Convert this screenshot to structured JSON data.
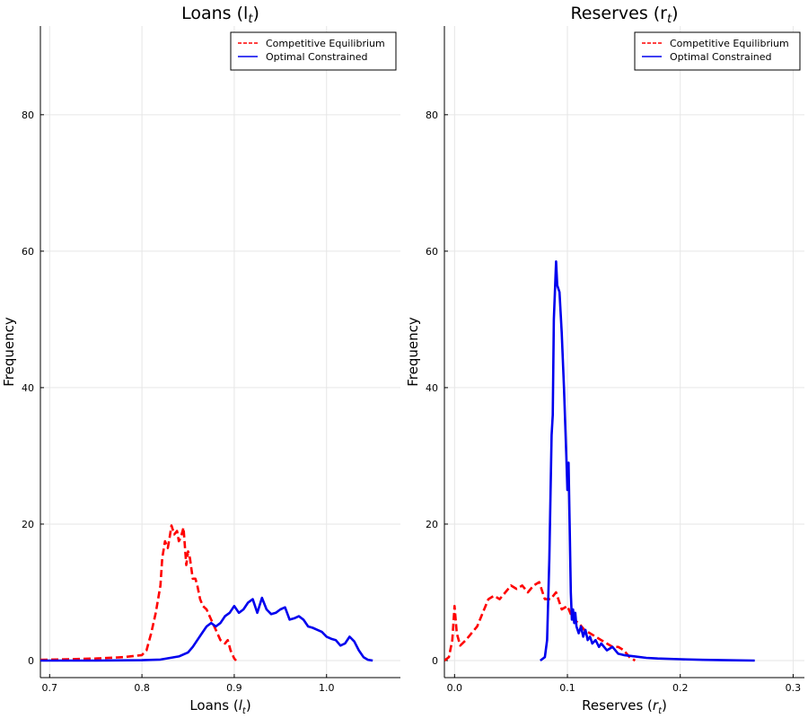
{
  "chart_data": [
    {
      "type": "line",
      "title": "Loans (l",
      "title_sub": "t",
      "title_close": ")",
      "xlabel": "Loans (",
      "xlabel_var": "l",
      "xlabel_sub": "t",
      "xlabel_close": ")",
      "ylabel": "Frequency",
      "xlim": [
        0.69,
        1.08
      ],
      "ylim": [
        -2.5,
        93
      ],
      "xticks": [
        0.7,
        0.8,
        0.9,
        1.0
      ],
      "xtick_labels": [
        "0.7",
        "0.8",
        "0.9",
        "1.0"
      ],
      "yticks": [
        0,
        20,
        40,
        60,
        80
      ],
      "ytick_labels": [
        "0",
        "20",
        "40",
        "60",
        "80"
      ],
      "grid": true,
      "legend_position": "top-right",
      "series": [
        {
          "name": "Competitive Equilibrium",
          "color": "#ff0000",
          "dash": true,
          "x": [
            0.69,
            0.72,
            0.75,
            0.78,
            0.8,
            0.805,
            0.81,
            0.815,
            0.82,
            0.822,
            0.825,
            0.828,
            0.83,
            0.832,
            0.835,
            0.838,
            0.84,
            0.842,
            0.845,
            0.848,
            0.85,
            0.852,
            0.855,
            0.858,
            0.86,
            0.863,
            0.866,
            0.87,
            0.875,
            0.88,
            0.885,
            0.89,
            0.893,
            0.896,
            0.9,
            0.902
          ],
          "y": [
            0.1,
            0.2,
            0.3,
            0.5,
            0.8,
            1.5,
            4,
            7,
            11,
            15,
            17.5,
            16.5,
            18,
            19.8,
            18.5,
            19,
            17.5,
            18,
            19.5,
            14,
            16,
            15,
            12,
            12,
            11,
            9,
            8,
            7.5,
            6,
            4.5,
            3,
            2.5,
            3,
            1.5,
            0.3,
            0
          ]
        },
        {
          "name": "Optimal Constrained",
          "color": "#0000ee",
          "dash": false,
          "x": [
            0.69,
            0.75,
            0.8,
            0.82,
            0.84,
            0.85,
            0.855,
            0.86,
            0.865,
            0.87,
            0.875,
            0.88,
            0.885,
            0.89,
            0.895,
            0.9,
            0.905,
            0.91,
            0.915,
            0.92,
            0.925,
            0.93,
            0.935,
            0.94,
            0.945,
            0.95,
            0.955,
            0.96,
            0.965,
            0.97,
            0.975,
            0.98,
            0.985,
            0.99,
            0.995,
            1.0,
            1.005,
            1.01,
            1.015,
            1.02,
            1.025,
            1.03,
            1.035,
            1.04,
            1.045,
            1.05
          ],
          "y": [
            0,
            0,
            0.05,
            0.15,
            0.6,
            1.2,
            2,
            3,
            4,
            5,
            5.5,
            5,
            5.5,
            6.5,
            7,
            8,
            7,
            7.5,
            8.5,
            9,
            7,
            9.2,
            7.5,
            6.8,
            7,
            7.5,
            7.8,
            6,
            6.2,
            6.5,
            6,
            5,
            4.8,
            4.5,
            4.2,
            3.5,
            3.2,
            3,
            2.2,
            2.5,
            3.5,
            2.8,
            1.5,
            0.5,
            0.1,
            0
          ]
        }
      ]
    },
    {
      "type": "line",
      "title": "Reserves (r",
      "title_sub": "t",
      "title_close": ")",
      "xlabel": "Reserves (",
      "xlabel_var": "r",
      "xlabel_sub": "t",
      "xlabel_close": ")",
      "ylabel": "Frequency",
      "xlim": [
        -0.009,
        0.31
      ],
      "ylim": [
        -2.5,
        93
      ],
      "xticks": [
        0.0,
        0.1,
        0.2,
        0.3
      ],
      "xtick_labels": [
        "0.0",
        "0.1",
        "0.2",
        "0.3"
      ],
      "yticks": [
        0,
        20,
        40,
        60,
        80
      ],
      "ytick_labels": [
        "0",
        "20",
        "40",
        "60",
        "80"
      ],
      "grid": true,
      "legend_position": "top-right",
      "series": [
        {
          "name": "Competitive Equilibrium",
          "color": "#ff0000",
          "dash": true,
          "x": [
            -0.009,
            -0.005,
            -0.002,
            0.0,
            0.002,
            0.005,
            0.01,
            0.015,
            0.02,
            0.025,
            0.03,
            0.035,
            0.04,
            0.045,
            0.05,
            0.055,
            0.06,
            0.065,
            0.07,
            0.075,
            0.08,
            0.085,
            0.09,
            0.095,
            0.1,
            0.105,
            0.11,
            0.115,
            0.12,
            0.125,
            0.13,
            0.135,
            0.14,
            0.145,
            0.15,
            0.155,
            0.16
          ],
          "y": [
            0,
            0.5,
            3,
            8,
            4,
            2.2,
            3,
            4,
            5,
            7,
            9,
            9.5,
            9,
            10,
            11,
            10.5,
            11,
            10,
            11,
            11.5,
            9,
            9,
            10,
            7.5,
            8,
            6,
            5.5,
            4.5,
            4,
            3.5,
            3,
            2.5,
            2,
            2,
            1.5,
            0.5,
            0
          ]
        },
        {
          "name": "Optimal Constrained",
          "color": "#0000ee",
          "dash": false,
          "x": [
            0.076,
            0.08,
            0.082,
            0.084,
            0.086,
            0.087,
            0.088,
            0.09,
            0.091,
            0.093,
            0.095,
            0.097,
            0.099,
            0.1,
            0.101,
            0.102,
            0.103,
            0.104,
            0.105,
            0.106,
            0.107,
            0.108,
            0.11,
            0.112,
            0.114,
            0.116,
            0.118,
            0.12,
            0.122,
            0.125,
            0.128,
            0.13,
            0.135,
            0.14,
            0.145,
            0.15,
            0.16,
            0.17,
            0.18,
            0.2,
            0.22,
            0.24,
            0.266
          ],
          "y": [
            0,
            0.5,
            3,
            15,
            33,
            36,
            50,
            58.5,
            55,
            54,
            48,
            40,
            30,
            25,
            29,
            20,
            10,
            6,
            7.5,
            5.5,
            7,
            5,
            4,
            5,
            3.5,
            4.5,
            3,
            3.5,
            2.5,
            3,
            2,
            2.5,
            1.5,
            2,
            1,
            0.8,
            0.6,
            0.4,
            0.3,
            0.2,
            0.1,
            0.05,
            0
          ]
        }
      ]
    }
  ]
}
